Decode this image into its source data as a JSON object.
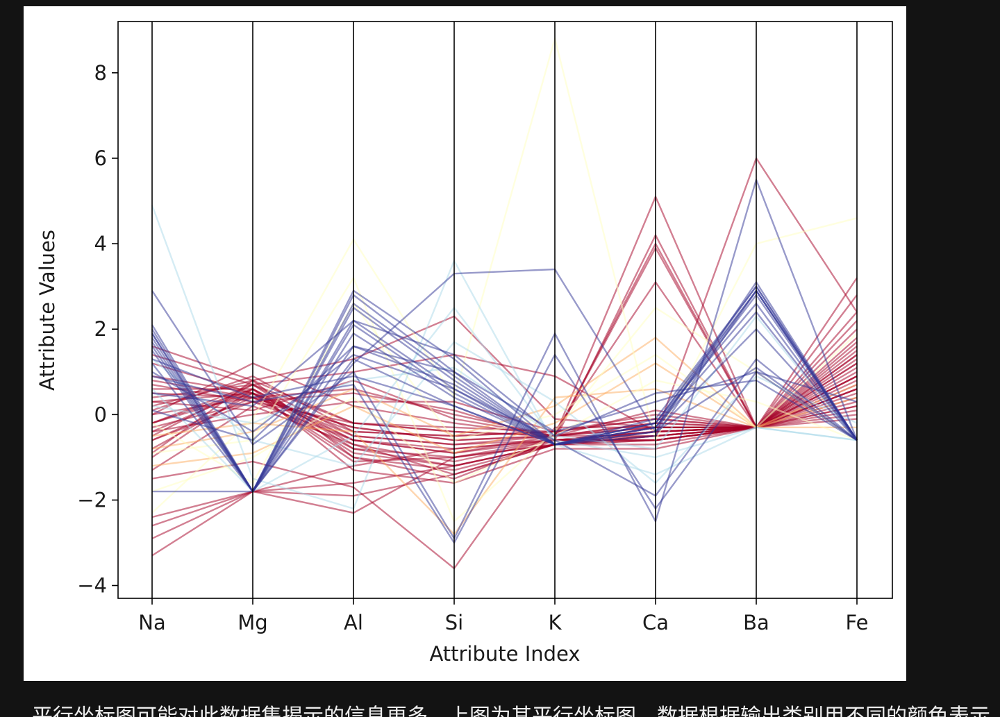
{
  "caption": {
    "text": "平行坐标图可能对此数据集揭示的信息更多。上图为其平行坐标图，数据根据输出类别用不同的颜色表示"
  },
  "colors": {
    "page_background": "#131313",
    "figure_background": "#ffffff",
    "palette": [
      "#a50026",
      "#fdae61",
      "#ffffbf",
      "#abd9e9",
      "#313695"
    ]
  },
  "chart_data": {
    "type": "parallel_coordinates",
    "title": "",
    "xlabel": "Attribute Index",
    "ylabel": "Attribute Values",
    "categories": [
      "Na",
      "Mg",
      "Al",
      "Si",
      "K",
      "Ca",
      "Ba",
      "Fe"
    ],
    "ylim": [
      -4.3,
      9.2
    ],
    "yticks": [
      {
        "value": -4,
        "label": "−4"
      },
      {
        "value": -2,
        "label": "−2"
      },
      {
        "value": 0,
        "label": "0"
      },
      {
        "value": 2,
        "label": "2"
      },
      {
        "value": 4,
        "label": "4"
      },
      {
        "value": 6,
        "label": "6"
      },
      {
        "value": 8,
        "label": "8"
      }
    ],
    "grid": false,
    "legend": "none",
    "colormap": "RdYlBu",
    "line_alpha": 0.5,
    "series": [
      {
        "color": "#a50026",
        "values": [
          -0.2,
          0.6,
          -0.6,
          -0.9,
          -0.6,
          -0.4,
          -0.3,
          0.8
        ]
      },
      {
        "color": "#a50026",
        "values": [
          0.3,
          0.5,
          -0.5,
          -0.7,
          -0.5,
          -0.3,
          -0.3,
          1.2
        ]
      },
      {
        "color": "#a50026",
        "values": [
          -0.5,
          0.7,
          -0.8,
          -1.0,
          -0.7,
          -0.5,
          -0.3,
          0.4
        ]
      },
      {
        "color": "#a50026",
        "values": [
          0.0,
          0.4,
          -0.3,
          -0.6,
          -0.5,
          -0.2,
          -0.3,
          1.6
        ]
      },
      {
        "color": "#a50026",
        "values": [
          0.6,
          0.6,
          -0.7,
          -1.1,
          -0.6,
          -0.6,
          -0.3,
          0.2
        ]
      },
      {
        "color": "#a50026",
        "values": [
          -0.8,
          0.5,
          -0.4,
          -0.5,
          -0.4,
          -0.1,
          -0.3,
          2.0
        ]
      },
      {
        "color": "#a50026",
        "values": [
          0.2,
          0.8,
          -1.0,
          -1.3,
          -0.7,
          -0.7,
          -0.3,
          -0.1
        ]
      },
      {
        "color": "#a50026",
        "values": [
          -0.3,
          0.3,
          -0.2,
          -0.4,
          -0.5,
          0.1,
          -0.3,
          2.4
        ]
      },
      {
        "color": "#a50026",
        "values": [
          0.9,
          0.5,
          -0.6,
          -0.8,
          -0.6,
          -0.5,
          -0.3,
          0.6
        ]
      },
      {
        "color": "#a50026",
        "values": [
          -1.0,
          0.6,
          -0.9,
          -1.2,
          -0.7,
          -0.3,
          -0.3,
          1.0
        ]
      },
      {
        "color": "#a50026",
        "values": [
          0.4,
          0.7,
          -0.5,
          -0.7,
          -0.6,
          -0.4,
          -0.3,
          1.4
        ]
      },
      {
        "color": "#a50026",
        "values": [
          -0.6,
          0.4,
          -0.3,
          -0.6,
          -0.5,
          -0.2,
          -0.3,
          2.8
        ]
      },
      {
        "color": "#a50026",
        "values": [
          1.2,
          0.5,
          -1.1,
          -1.0,
          -0.6,
          -0.6,
          -0.3,
          0.3
        ]
      },
      {
        "color": "#a50026",
        "values": [
          -1.3,
          0.2,
          -0.7,
          -1.4,
          -0.7,
          -0.5,
          -0.3,
          0.9
        ]
      },
      {
        "color": "#a50026",
        "values": [
          0.1,
          0.9,
          -0.4,
          -0.5,
          -0.4,
          0.0,
          -0.3,
          1.8
        ]
      },
      {
        "color": "#a50026",
        "values": [
          -0.4,
          0.6,
          -1.3,
          -1.6,
          -0.8,
          -0.8,
          -0.3,
          0.0
        ]
      },
      {
        "color": "#a50026",
        "values": [
          0.7,
          0.3,
          -0.6,
          -0.9,
          -0.5,
          -0.3,
          -0.3,
          2.2
        ]
      },
      {
        "color": "#a50026",
        "values": [
          -0.9,
          0.8,
          -0.2,
          -0.3,
          -0.4,
          -0.1,
          -0.3,
          1.3
        ]
      },
      {
        "color": "#a50026",
        "values": [
          0.5,
          0.4,
          -0.8,
          -1.2,
          -0.7,
          -0.6,
          -0.3,
          0.7
        ]
      },
      {
        "color": "#a50026",
        "values": [
          -0.2,
          0.5,
          -1.0,
          -1.5,
          -0.6,
          -0.4,
          -0.3,
          3.2
        ]
      },
      {
        "color": "#a50026",
        "values": [
          0.0,
          1.2,
          0.2,
          -0.2,
          -0.5,
          5.1,
          -0.3,
          0.5
        ]
      },
      {
        "color": "#a50026",
        "values": [
          -0.6,
          0.3,
          0.5,
          0.1,
          -0.6,
          4.2,
          -0.3,
          0.9
        ]
      },
      {
        "color": "#a50026",
        "values": [
          0.3,
          0.1,
          0.8,
          -0.1,
          -0.5,
          3.9,
          -0.3,
          1.1
        ]
      },
      {
        "color": "#a50026",
        "values": [
          -0.4,
          0.0,
          0.3,
          0.3,
          -0.4,
          3.1,
          -0.3,
          0.6
        ]
      },
      {
        "color": "#a50026",
        "values": [
          0.8,
          0.4,
          0.6,
          0.0,
          -0.5,
          4.0,
          -0.3,
          1.5
        ]
      },
      {
        "color": "#a50026",
        "values": [
          -0.2,
          0.7,
          -0.2,
          -0.4,
          -0.5,
          -0.5,
          6.0,
          2.4
        ]
      },
      {
        "color": "#a50026",
        "values": [
          -3.3,
          -1.8,
          -2.3,
          -1.0,
          -0.7,
          -0.6,
          -0.3,
          1.7
        ]
      },
      {
        "color": "#a50026",
        "values": [
          -2.9,
          -1.8,
          -1.6,
          -1.2,
          -0.7,
          -0.5,
          -0.3,
          1.2
        ]
      },
      {
        "color": "#a50026",
        "values": [
          -2.6,
          -1.8,
          -1.9,
          -1.4,
          -0.7,
          -0.4,
          -0.3,
          0.9
        ]
      },
      {
        "color": "#a50026",
        "values": [
          -2.4,
          -1.8,
          -1.2,
          -0.8,
          -0.6,
          -0.6,
          -0.3,
          1.4
        ]
      },
      {
        "color": "#a50026",
        "values": [
          -1.5,
          -1.1,
          -1.7,
          -3.6,
          -0.3,
          -0.3,
          -0.3,
          0.6
        ]
      },
      {
        "color": "#a50026",
        "values": [
          1.6,
          0.8,
          1.3,
          2.3,
          -0.1,
          -0.3,
          -0.3,
          0.2
        ]
      },
      {
        "color": "#a50026",
        "values": [
          1.4,
          0.7,
          1.0,
          1.4,
          0.9,
          -0.4,
          -0.3,
          0.1
        ]
      },
      {
        "color": "#fdae61",
        "values": [
          -0.8,
          -0.4,
          0.6,
          -0.5,
          0.2,
          1.8,
          -0.3,
          0.4
        ]
      },
      {
        "color": "#fdae61",
        "values": [
          -1.2,
          -0.9,
          0.2,
          -0.9,
          -0.2,
          1.2,
          -0.3,
          -0.3
        ]
      },
      {
        "color": "#fdae61",
        "values": [
          -0.5,
          -0.2,
          -0.4,
          -2.8,
          0.4,
          0.6,
          -0.3,
          0.7
        ]
      },
      {
        "color": "#ffffbf",
        "values": [
          -2.3,
          -0.1,
          4.1,
          0.4,
          8.8,
          -0.6,
          4.0,
          4.6
        ]
      },
      {
        "color": "#ffffbf",
        "values": [
          -0.9,
          -0.6,
          3.2,
          -2.5,
          -0.4,
          2.5,
          1.0,
          -0.6
        ]
      },
      {
        "color": "#ffffbf",
        "values": [
          -0.2,
          -1.6,
          2.6,
          -0.6,
          0.0,
          1.4,
          -0.3,
          1.9
        ]
      },
      {
        "color": "#ffffbf",
        "values": [
          -1.8,
          -1.0,
          0.4,
          -1.6,
          -0.5,
          0.8,
          0.3,
          -0.6
        ]
      },
      {
        "color": "#abd9e9",
        "values": [
          4.9,
          -1.5,
          -2.2,
          3.6,
          -0.7,
          -1.4,
          -0.3,
          -0.6
        ]
      },
      {
        "color": "#abd9e9",
        "values": [
          0.6,
          -1.8,
          -0.5,
          2.5,
          -0.6,
          -1.0,
          -0.3,
          -0.6
        ]
      },
      {
        "color": "#abd9e9",
        "values": [
          1.3,
          -0.6,
          -1.2,
          1.7,
          0.3,
          -1.6,
          0.9,
          -0.2
        ]
      },
      {
        "color": "#abd9e9",
        "values": [
          0.2,
          -0.2,
          0.8,
          1.1,
          -0.5,
          -0.8,
          2.3,
          -0.6
        ]
      },
      {
        "color": "#313695",
        "values": [
          1.9,
          -1.8,
          2.8,
          1.0,
          -0.7,
          -0.3,
          2.9,
          -0.6
        ]
      },
      {
        "color": "#313695",
        "values": [
          1.7,
          -1.8,
          2.5,
          0.8,
          -0.7,
          -0.2,
          3.0,
          -0.6
        ]
      },
      {
        "color": "#313695",
        "values": [
          2.0,
          -1.8,
          2.2,
          0.6,
          -0.7,
          -0.4,
          3.1,
          -0.6
        ]
      },
      {
        "color": "#313695",
        "values": [
          1.5,
          -1.8,
          2.9,
          1.3,
          -0.7,
          -0.3,
          2.8,
          -0.6
        ]
      },
      {
        "color": "#313695",
        "values": [
          1.8,
          -1.8,
          1.9,
          0.4,
          -0.7,
          -0.2,
          2.6,
          -0.6
        ]
      },
      {
        "color": "#313695",
        "values": [
          1.2,
          -1.8,
          2.6,
          0.9,
          -0.7,
          -0.5,
          2.9,
          -0.6
        ]
      },
      {
        "color": "#313695",
        "values": [
          2.1,
          -1.8,
          1.6,
          0.7,
          -0.7,
          -0.1,
          3.0,
          -0.6
        ]
      },
      {
        "color": "#313695",
        "values": [
          1.6,
          -1.8,
          1.3,
          0.2,
          -0.7,
          -0.3,
          2.4,
          -0.6
        ]
      },
      {
        "color": "#313695",
        "values": [
          1.9,
          -1.8,
          2.1,
          0.5,
          -0.7,
          -0.2,
          2.9,
          -0.6
        ]
      },
      {
        "color": "#313695",
        "values": [
          2.9,
          -0.7,
          1.0,
          -2.9,
          1.9,
          -2.5,
          5.5,
          -0.6
        ]
      },
      {
        "color": "#313695",
        "values": [
          -1.8,
          -1.8,
          1.2,
          3.3,
          3.4,
          -0.4,
          1.1,
          -0.6
        ]
      },
      {
        "color": "#313695",
        "values": [
          0.9,
          0.3,
          0.7,
          -3.0,
          1.4,
          -2.2,
          1.0,
          0.3
        ]
      },
      {
        "color": "#313695",
        "values": [
          1.0,
          -0.4,
          1.4,
          0.6,
          -0.6,
          -1.9,
          1.3,
          -0.6
        ]
      },
      {
        "color": "#313695",
        "values": [
          0.5,
          0.2,
          2.2,
          1.4,
          -0.5,
          0.5,
          0.8,
          -0.6
        ]
      },
      {
        "color": "#313695",
        "values": [
          1.3,
          0.4,
          0.9,
          0.2,
          -0.7,
          -0.4,
          2.0,
          -0.6
        ]
      },
      {
        "color": "#313695",
        "values": [
          0.1,
          -0.6,
          1.6,
          1.0,
          -0.4,
          0.3,
          1.0,
          -0.6
        ]
      }
    ]
  }
}
